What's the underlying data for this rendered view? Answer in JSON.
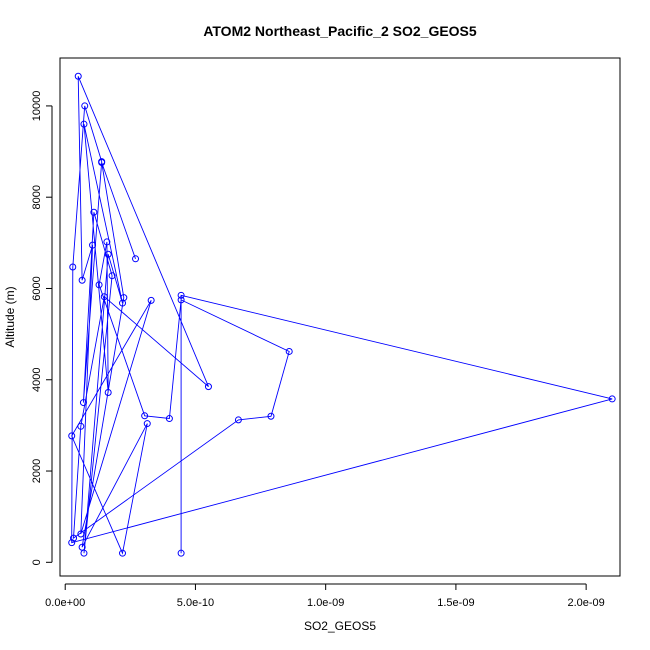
{
  "chart_data": {
    "type": "line",
    "title": "ATOM2 Northeast_Pacific_2 SO2_GEOS5",
    "xlabel": "SO2_GEOS5",
    "ylabel": "Altitude (m)",
    "xlim": [
      -2e-11,
      2.13e-09
    ],
    "ylim": [
      -300,
      11050
    ],
    "x_ticks": [
      0,
      5e-10,
      1e-09,
      1.5e-09,
      2e-09
    ],
    "x_tick_labels": [
      "0.0e+00",
      "5.0e-10",
      "1.0e-09",
      "1.5e-09",
      "2.0e-09"
    ],
    "y_ticks": [
      0,
      2000,
      4000,
      6000,
      8000,
      10000
    ],
    "y_tick_labels": [
      "0",
      "2000",
      "4000",
      "6000",
      "8000",
      "10000"
    ],
    "markers": "open-circle",
    "series": [
      {
        "color": "#0000ff",
        "points": [
          {
            "x": 4.45e-10,
            "y": 200
          },
          {
            "x": 4.45e-10,
            "y": 5850
          },
          {
            "x": 2.1e-09,
            "y": 3580
          },
          {
            "x": 2.5e-11,
            "y": 430
          },
          {
            "x": 2.9e-11,
            "y": 6470
          },
          {
            "x": 7.5e-11,
            "y": 10000
          },
          {
            "x": 1.4e-10,
            "y": 8780
          },
          {
            "x": 7e-11,
            "y": 3500
          },
          {
            "x": 1.1e-10,
            "y": 7670
          },
          {
            "x": 1.8e-10,
            "y": 6280
          },
          {
            "x": 7.2e-11,
            "y": 200
          },
          {
            "x": 1.65e-10,
            "y": 6750
          },
          {
            "x": 2.2e-10,
            "y": 5680
          },
          {
            "x": 7.2e-11,
            "y": 9600
          },
          {
            "x": 1.65e-10,
            "y": 3720
          },
          {
            "x": 1.6e-10,
            "y": 7020
          },
          {
            "x": 1.3e-10,
            "y": 6080
          },
          {
            "x": 3.05e-10,
            "y": 3210
          },
          {
            "x": 4e-10,
            "y": 3150
          },
          {
            "x": 4.45e-10,
            "y": 5750
          },
          {
            "x": 8.6e-10,
            "y": 4620
          },
          {
            "x": 7.9e-10,
            "y": 3200
          },
          {
            "x": 6.65e-10,
            "y": 3120
          },
          {
            "x": 3.2e-11,
            "y": 530
          },
          {
            "x": 6e-11,
            "y": 2980
          },
          {
            "x": 1.5e-10,
            "y": 5820
          },
          {
            "x": 5.5e-10,
            "y": 3850
          },
          {
            "x": 5e-11,
            "y": 10650
          },
          {
            "x": 6.5e-11,
            "y": 6180
          },
          {
            "x": 1.05e-10,
            "y": 6950
          },
          {
            "x": 6e-11,
            "y": 620
          },
          {
            "x": 3.3e-10,
            "y": 5740
          },
          {
            "x": 2.5e-11,
            "y": 2770
          },
          {
            "x": 2.2e-10,
            "y": 200
          },
          {
            "x": 3.15e-10,
            "y": 3040
          },
          {
            "x": 6.5e-11,
            "y": 330
          },
          {
            "x": 2.25e-10,
            "y": 5800
          },
          {
            "x": 1.4e-10,
            "y": 8760
          },
          {
            "x": 2.7e-10,
            "y": 6650
          }
        ]
      }
    ]
  }
}
